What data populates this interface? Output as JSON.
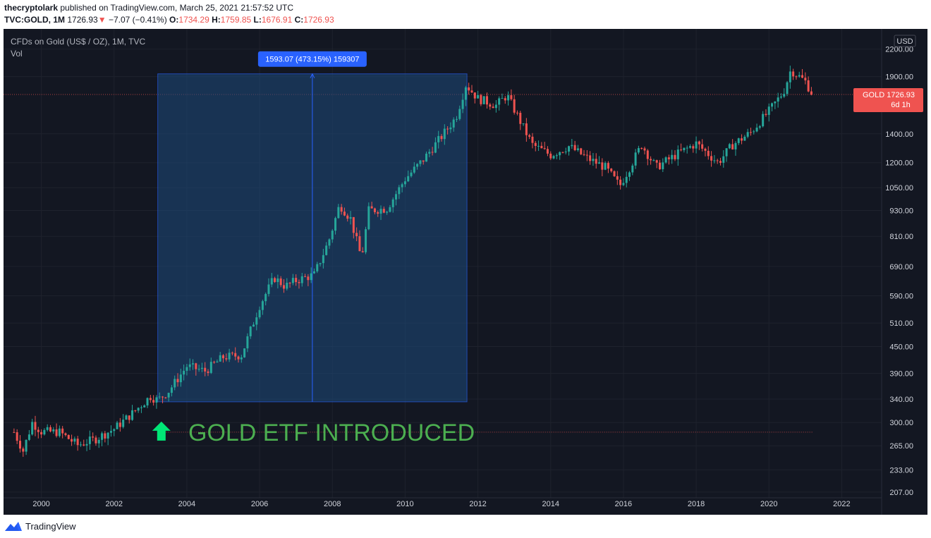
{
  "header": {
    "author": "thecryptolark",
    "published": "published on TradingView.com, March 25, 2021 21:57:52 UTC",
    "symbol": "TVC:GOLD, 1M",
    "last": "1726.93",
    "change": "−7.07 (−0.41%)",
    "o_label": "O:",
    "o": "1734.29",
    "h_label": "H:",
    "h": "1759.85",
    "l_label": "L:",
    "l": "1676.91",
    "c_label": "C:",
    "c": "1726.93"
  },
  "legend": {
    "title": "CFDs on Gold (US$ / OZ), 1M, TVC",
    "vol": "Vol"
  },
  "price_axis": {
    "currency": "USD"
  },
  "price_label": {
    "text": "GOLD  1726.93",
    "countdown": "6d 1h",
    "color": "#ef5350"
  },
  "measure": {
    "label": "1593.07 (473.15%) 159307",
    "from_year": 2003.2,
    "to_year": 2011.7,
    "low": 335,
    "high": 1928
  },
  "annotation": {
    "text": "GOLD ETF INTRODUCED",
    "color": "#4caf50",
    "arrow_color": "#00e676"
  },
  "colors": {
    "up": "#26a69a",
    "down": "#ef5350",
    "bg": "#131722",
    "grid": "#1e222d",
    "measure_fill": "#1e4a7c",
    "measure_line": "#2962ff"
  },
  "footer": {
    "brand": "TradingView"
  },
  "chart_data": {
    "type": "line",
    "title": "CFDs on Gold (US$ / OZ), 1M, TVC",
    "scale": "log",
    "xlim": [
      1999.0,
      2023.0
    ],
    "ylim": [
      200,
      2450
    ],
    "x_ticks": [
      "2000",
      "2002",
      "2004",
      "2006",
      "2008",
      "2010",
      "2012",
      "2014",
      "2016",
      "2018",
      "2020",
      "2022"
    ],
    "y_ticks": [
      "207.00",
      "233.00",
      "265.00",
      "300.00",
      "340.00",
      "390.00",
      "450.00",
      "510.00",
      "590.00",
      "690.00",
      "810.00",
      "930.00",
      "1050.00",
      "1200.00",
      "1400.00",
      "1900.00",
      "2200.00"
    ],
    "series": [
      {
        "values_note": "monthly close, approx",
        "x": [
          1999.25,
          1999.5,
          1999.75,
          2000.0,
          2000.5,
          2001.0,
          2001.5,
          2002.0,
          2002.5,
          2003.0,
          2003.2,
          2003.5,
          2004.0,
          2004.5,
          2005.0,
          2005.5,
          2006.0,
          2006.4,
          2006.7,
          2007.0,
          2007.5,
          2007.9,
          2008.2,
          2008.5,
          2008.8,
          2009.0,
          2009.5,
          2010.0,
          2010.5,
          2011.0,
          2011.4,
          2011.67,
          2012.0,
          2012.5,
          2012.8,
          2013.3,
          2013.5,
          2014.0,
          2014.5,
          2015.0,
          2015.5,
          2015.9,
          2016.5,
          2016.9,
          2017.5,
          2018.0,
          2018.6,
          2019.0,
          2019.5,
          2020.0,
          2020.4,
          2020.6,
          2020.9,
          2021.0,
          2021.2
        ],
        "y": [
          285,
          258,
          300,
          286,
          285,
          266,
          275,
          290,
          315,
          345,
          338,
          355,
          405,
          395,
          425,
          430,
          560,
          650,
          620,
          640,
          660,
          790,
          960,
          890,
          720,
          930,
          940,
          1100,
          1220,
          1380,
          1530,
          1820,
          1690,
          1630,
          1720,
          1420,
          1320,
          1250,
          1310,
          1230,
          1170,
          1060,
          1320,
          1170,
          1260,
          1330,
          1200,
          1320,
          1410,
          1580,
          1750,
          1970,
          1880,
          1850,
          1727
        ]
      }
    ]
  }
}
